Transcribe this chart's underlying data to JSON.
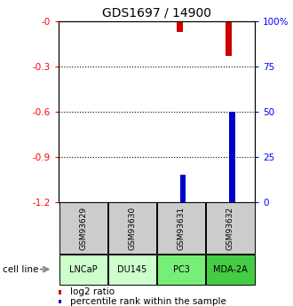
{
  "title": "GDS1697 / 14900",
  "samples": [
    "GSM93629",
    "GSM93630",
    "GSM93631",
    "GSM93632"
  ],
  "cell_lines": [
    "LNCaP",
    "DU145",
    "PC3",
    "MDA-2A"
  ],
  "log2_ratio": [
    0,
    0,
    -0.07,
    -0.23
  ],
  "percentile_rank": [
    0,
    0,
    15,
    50
  ],
  "ylim_left": [
    -1.2,
    0
  ],
  "ylim_right": [
    0,
    100
  ],
  "yticks_left": [
    0,
    -0.3,
    -0.6,
    -0.9,
    -1.2
  ],
  "yticks_right": [
    0,
    25,
    50,
    75,
    100
  ],
  "bar_color_red": "#cc0000",
  "bar_color_blue": "#0000cc",
  "title_fontsize": 10,
  "bar_width": 0.12,
  "cell_line_colors": [
    "#ccffcc",
    "#ccffcc",
    "#77ee77",
    "#44cc44"
  ],
  "gsm_box_color": "#cccccc",
  "arrow_color": "#888888"
}
